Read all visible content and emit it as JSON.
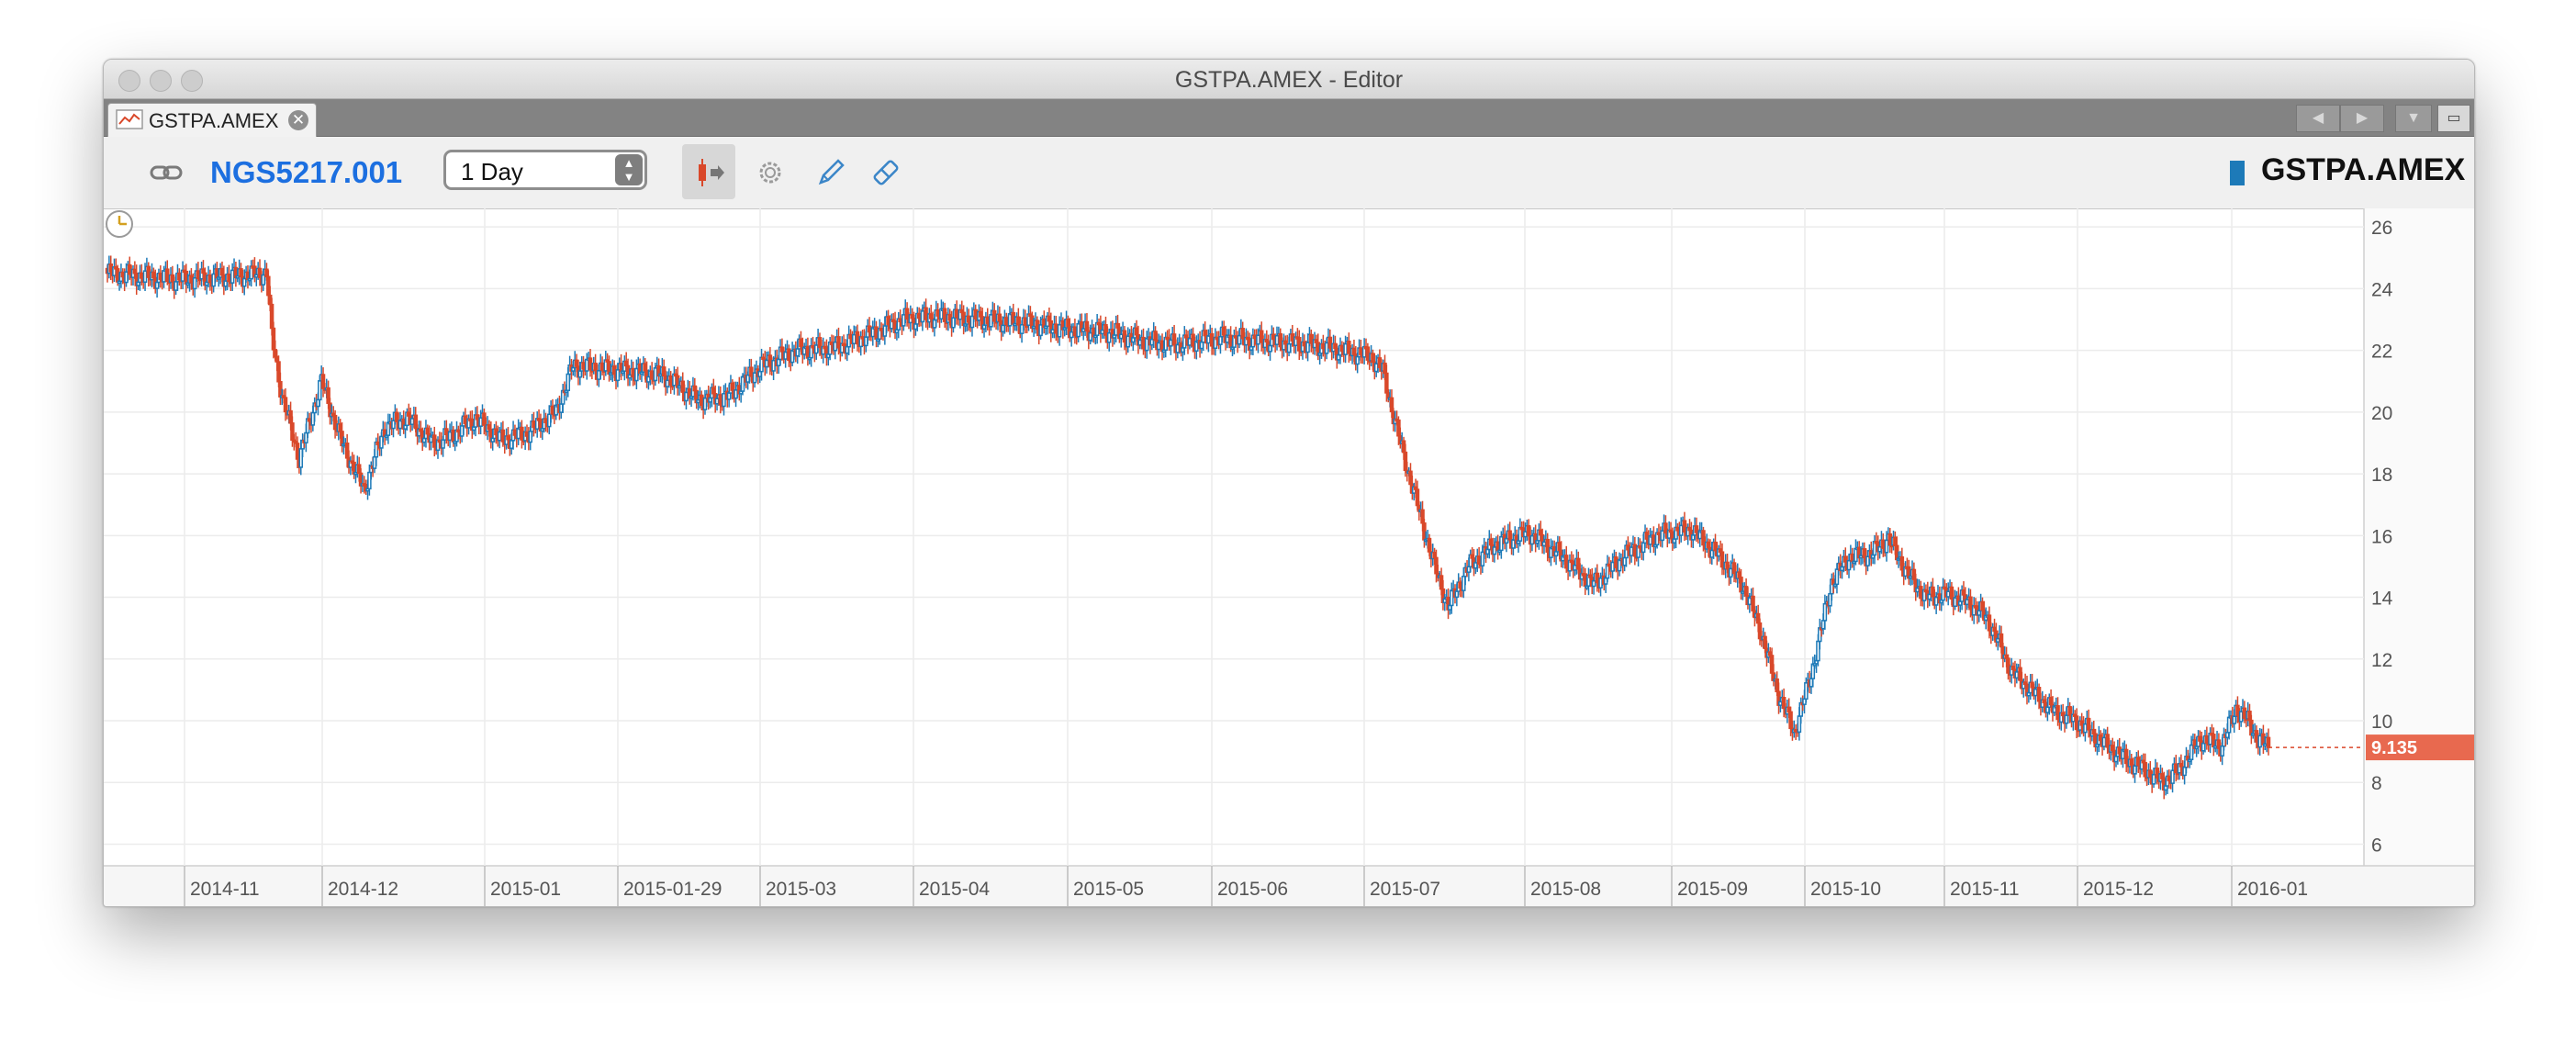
{
  "window": {
    "title": "GSTPA.AMEX - Editor"
  },
  "tab": {
    "label": "GSTPA.AMEX",
    "close_icon": "close-icon",
    "icon": "chart-icon"
  },
  "nav_icons": [
    "chevron-left-icon",
    "chevron-right-icon",
    "chevron-down-icon",
    "maximize-icon"
  ],
  "toolbar": {
    "link_icon": "link-icon",
    "instrument_id": "NGS5217.001",
    "period": {
      "selected": "1 Day"
    },
    "tools": [
      "candle-mode-icon",
      "gear-icon",
      "pencil-icon",
      "eraser-icon"
    ],
    "symbol": "GSTPA.AMEX"
  },
  "colors": {
    "down": "#d9482a",
    "up": "#1d7ab8",
    "grid": "#ececec",
    "last_price_bg": "#e8694f",
    "instrument": "#1c6fe0"
  },
  "chart_data": {
    "type": "candlestick",
    "y_ticks": [
      6,
      8,
      10,
      12,
      14,
      16,
      18,
      20,
      22,
      24,
      26
    ],
    "ylim": [
      5.3,
      26.6
    ],
    "x_labels": [
      "2014-11",
      "2014-12",
      "2015-01",
      "2015-01-29",
      "2015-03",
      "2015-04",
      "2015-05",
      "2015-06",
      "2015-07",
      "2015-08",
      "2015-09",
      "2015-10",
      "2015-11",
      "2015-12",
      "2016-01"
    ],
    "last_price": "9.135",
    "last_price_value": 9.135,
    "anchors": [
      [
        0,
        24.5
      ],
      [
        40,
        24.3
      ],
      [
        75,
        24.4
      ],
      [
        93,
        24.5
      ],
      [
        96,
        22.5
      ],
      [
        102,
        20.5
      ],
      [
        112,
        18.5
      ],
      [
        125,
        21.0
      ],
      [
        137,
        19.0
      ],
      [
        150,
        17.5
      ],
      [
        162,
        19.5
      ],
      [
        175,
        19.8
      ],
      [
        190,
        19.0
      ],
      [
        200,
        19.2
      ],
      [
        215,
        19.8
      ],
      [
        230,
        19.1
      ],
      [
        245,
        19.3
      ],
      [
        262,
        20.0
      ],
      [
        272,
        21.5
      ],
      [
        290,
        21.4
      ],
      [
        310,
        21.3
      ],
      [
        325,
        21.2
      ],
      [
        345,
        20.4
      ],
      [
        362,
        20.5
      ],
      [
        382,
        21.5
      ],
      [
        402,
        22.0
      ],
      [
        425,
        22.1
      ],
      [
        445,
        22.5
      ],
      [
        465,
        23.0
      ],
      [
        485,
        23.1
      ],
      [
        510,
        23.0
      ],
      [
        535,
        22.9
      ],
      [
        560,
        22.7
      ],
      [
        585,
        22.6
      ],
      [
        605,
        22.3
      ],
      [
        625,
        22.2
      ],
      [
        650,
        22.4
      ],
      [
        675,
        22.3
      ],
      [
        700,
        22.2
      ],
      [
        722,
        22.0
      ],
      [
        738,
        21.8
      ],
      [
        745,
        21.3
      ],
      [
        755,
        19.0
      ],
      [
        765,
        17.0
      ],
      [
        775,
        15.0
      ],
      [
        783,
        13.7
      ],
      [
        795,
        15.0
      ],
      [
        810,
        15.7
      ],
      [
        830,
        16.1
      ],
      [
        850,
        15.3
      ],
      [
        868,
        14.4
      ],
      [
        885,
        15.3
      ],
      [
        905,
        16.0
      ],
      [
        925,
        16.2
      ],
      [
        940,
        15.4
      ],
      [
        955,
        14.4
      ],
      [
        965,
        13.0
      ],
      [
        975,
        11.0
      ],
      [
        985,
        9.6
      ],
      [
        995,
        11.5
      ],
      [
        1007,
        14.5
      ],
      [
        1017,
        15.3
      ],
      [
        1030,
        15.4
      ],
      [
        1040,
        15.9
      ],
      [
        1052,
        14.7
      ],
      [
        1062,
        14.0
      ],
      [
        1075,
        14.1
      ],
      [
        1088,
        13.8
      ],
      [
        1098,
        13.3
      ],
      [
        1112,
        11.6
      ],
      [
        1125,
        10.9
      ],
      [
        1137,
        10.3
      ],
      [
        1150,
        10.0
      ],
      [
        1165,
        9.3
      ],
      [
        1180,
        8.7
      ],
      [
        1190,
        8.4
      ],
      [
        1200,
        8.0
      ],
      [
        1210,
        8.4
      ],
      [
        1222,
        9.4
      ],
      [
        1235,
        9.2
      ],
      [
        1243,
        10.4
      ],
      [
        1250,
        10.0
      ],
      [
        1256,
        9.4
      ],
      [
        1262,
        9.135
      ]
    ]
  }
}
